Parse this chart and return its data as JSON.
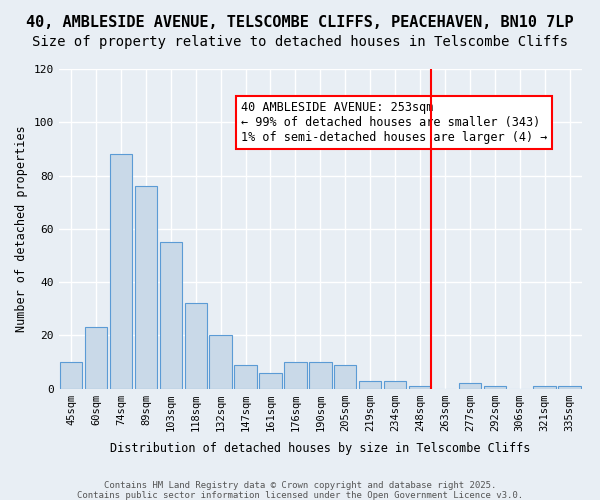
{
  "title_line1": "40, AMBLESIDE AVENUE, TELSCOMBE CLIFFS, PEACEHAVEN, BN10 7LP",
  "title_line2": "Size of property relative to detached houses in Telscombe Cliffs",
  "xlabel": "Distribution of detached houses by size in Telscombe Cliffs",
  "ylabel": "Number of detached properties",
  "bar_labels": [
    "45sqm",
    "60sqm",
    "74sqm",
    "89sqm",
    "103sqm",
    "118sqm",
    "132sqm",
    "147sqm",
    "161sqm",
    "176sqm",
    "190sqm",
    "205sqm",
    "219sqm",
    "234sqm",
    "248sqm",
    "263sqm",
    "277sqm",
    "292sqm",
    "306sqm",
    "321sqm",
    "335sqm"
  ],
  "bar_values": [
    10,
    23,
    88,
    76,
    55,
    32,
    20,
    9,
    6,
    10,
    10,
    9,
    3,
    3,
    1,
    0,
    2,
    1,
    0,
    1,
    1
  ],
  "bar_color": "#c9d9e8",
  "bar_edge_color": "#5b9bd5",
  "background_color": "#e8eef4",
  "grid_color": "#ffffff",
  "ylim": [
    0,
    120
  ],
  "yticks": [
    0,
    20,
    40,
    60,
    80,
    100,
    120
  ],
  "red_line_index": 14,
  "annotation_text": "40 AMBLESIDE AVENUE: 253sqm\n← 99% of detached houses are smaller (343)\n1% of semi-detached houses are larger (4) →",
  "footer_line1": "Contains HM Land Registry data © Crown copyright and database right 2025.",
  "footer_line2": "Contains public sector information licensed under the Open Government Licence v3.0.",
  "title_fontsize": 11,
  "subtitle_fontsize": 10,
  "annotation_fontsize": 8.5
}
